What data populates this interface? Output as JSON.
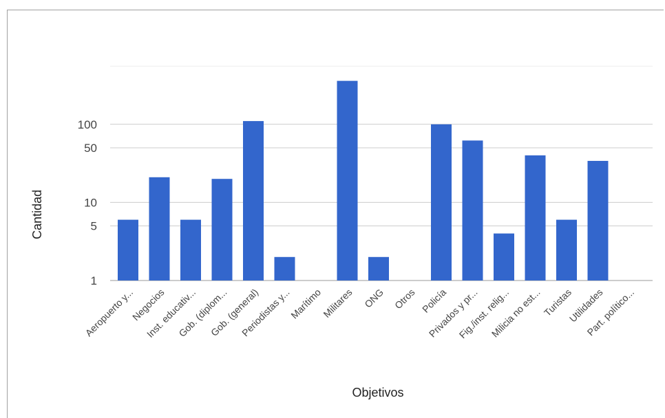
{
  "chart_data": {
    "type": "bar",
    "title": "",
    "xlabel": "Objetivos",
    "ylabel": "Cantidad",
    "yscale": "log",
    "yticks": [
      1,
      5,
      10,
      50,
      100
    ],
    "ylim": [
      1,
      800
    ],
    "grid": true,
    "legend": "none",
    "bar_color": "#3366cc",
    "categories": [
      "Aeropuerto y...",
      "Negocios",
      "Inst. educativ...",
      "Gob. (diplom...",
      "Gob. (general)",
      "Periodistas y...",
      "Marítimo",
      "Militares",
      "ONG",
      "Otros",
      "Policía",
      "Privados y pr...",
      "Fig./inst. relig...",
      "Milicia no est...",
      "Turistas",
      "Utilidades",
      "Part. político..."
    ],
    "values": [
      6,
      21,
      6,
      20,
      110,
      2,
      null,
      360,
      2,
      null,
      100,
      62,
      4,
      40,
      6,
      34,
      null
    ]
  }
}
